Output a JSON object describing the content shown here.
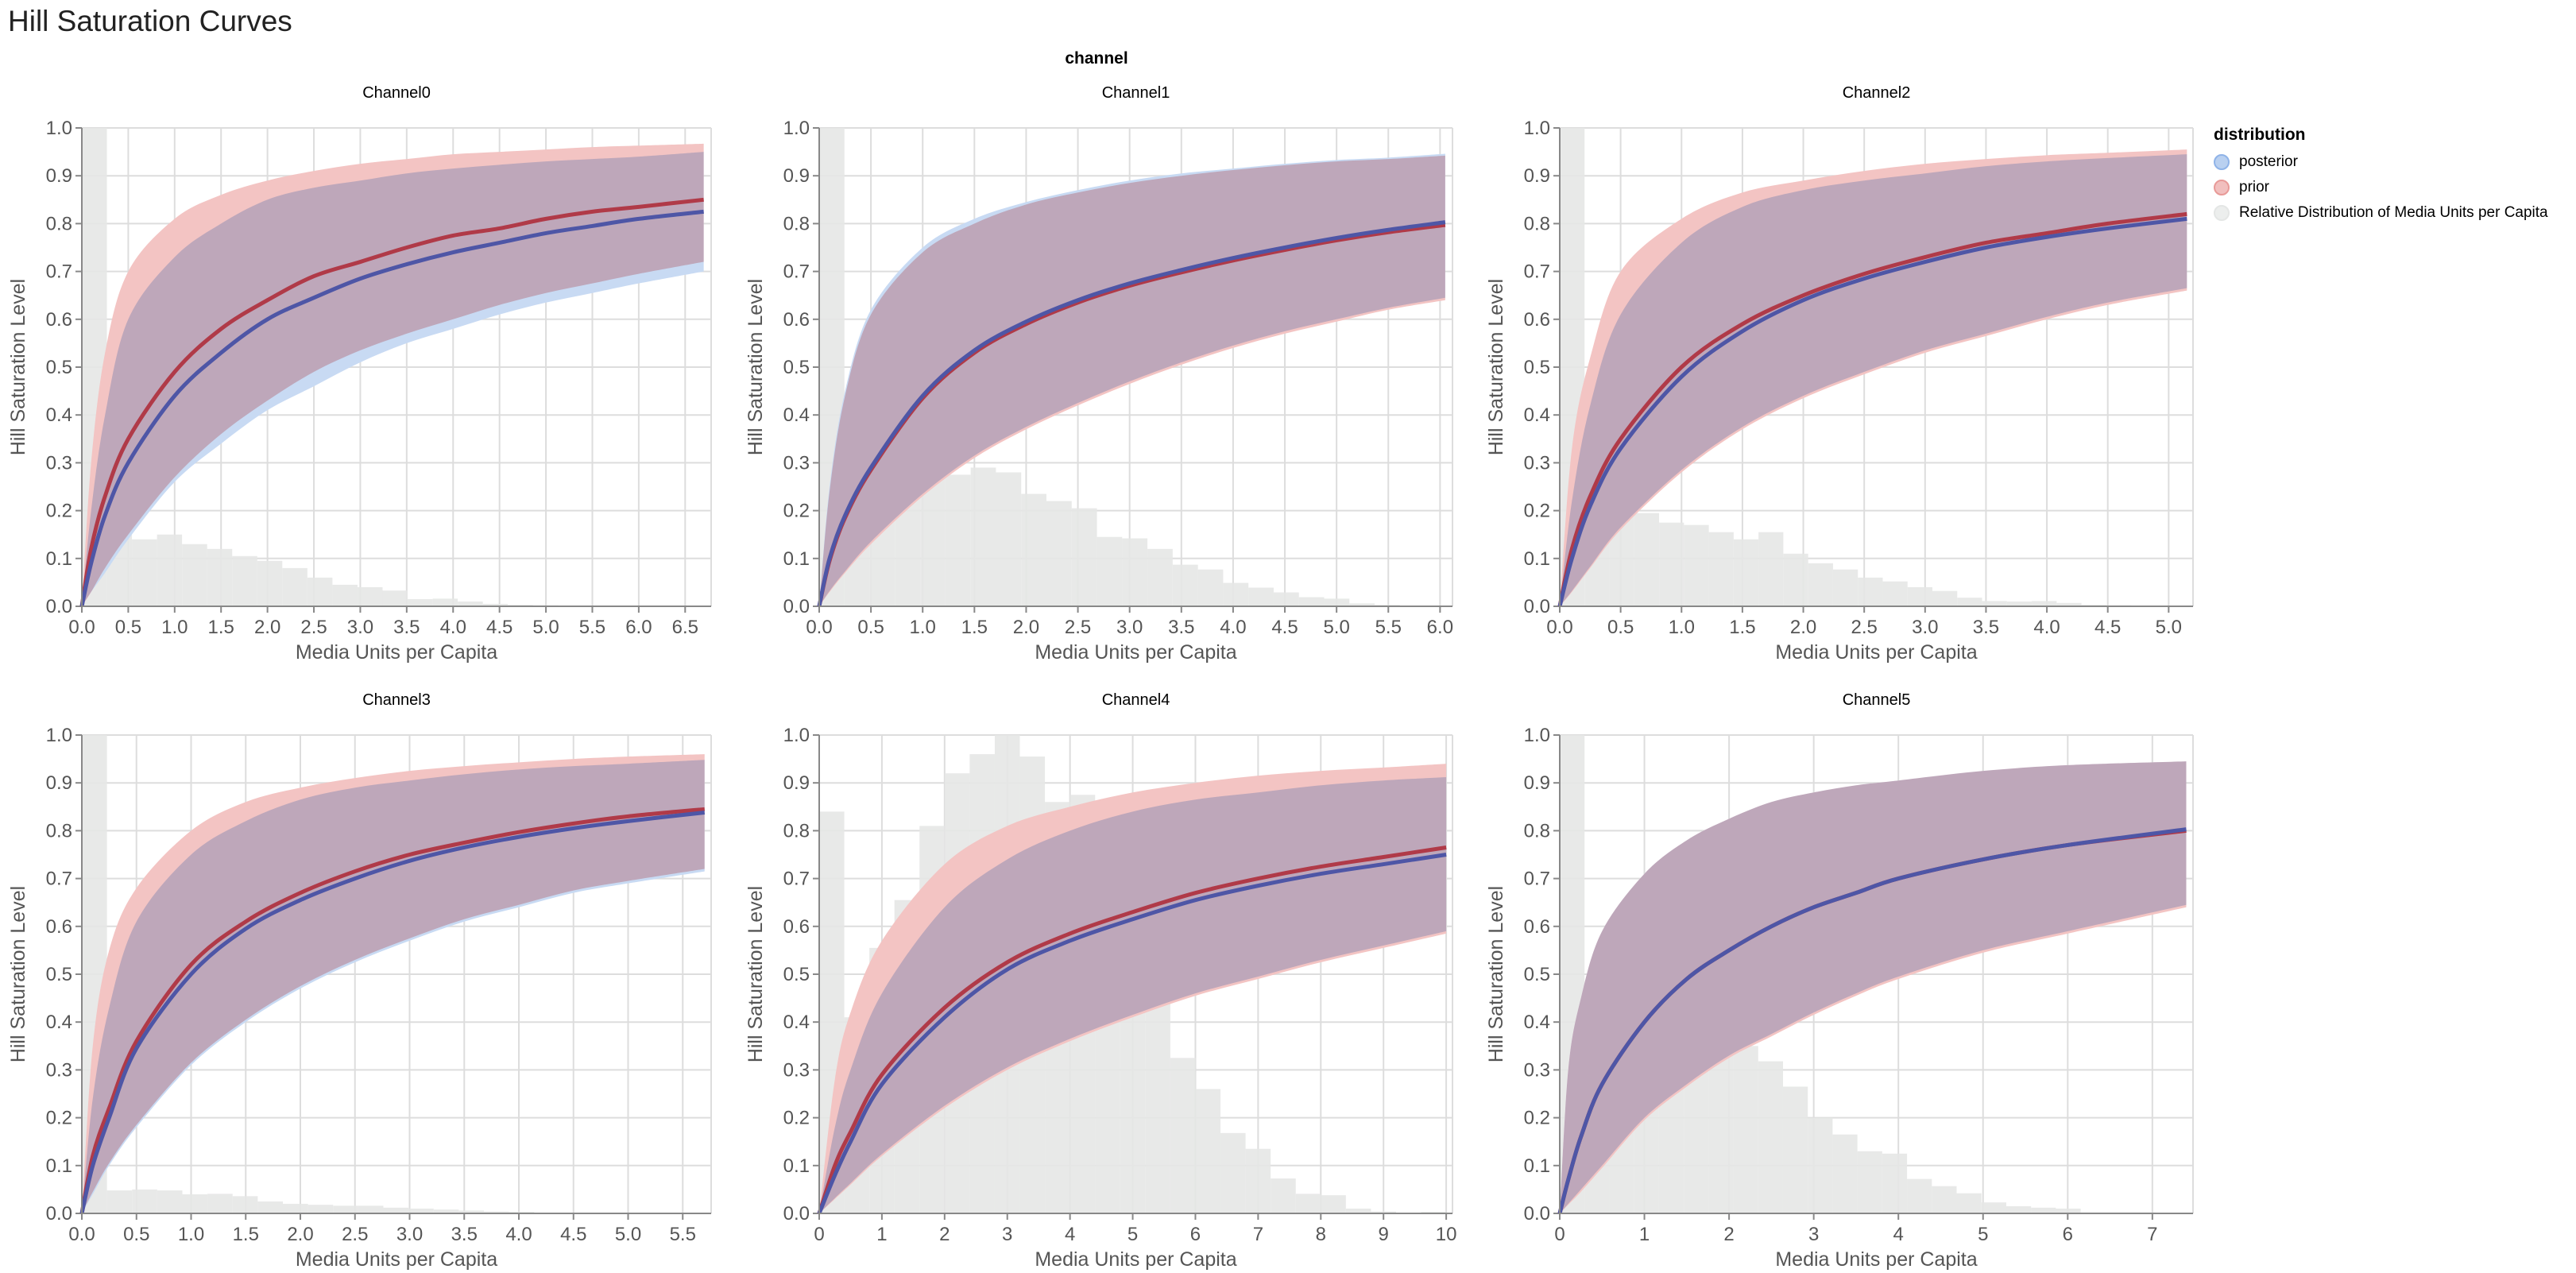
{
  "title": "Hill Saturation Curves",
  "facet_header": "channel",
  "colors": {
    "prior_band": "#f3c4c3",
    "posterior_band": "#c8daf3",
    "prior_line": "#b03a48",
    "posterior_line": "#4e56a6",
    "histogram": "#e6e7e6",
    "grid": "#dddddd",
    "axis": "#888888"
  },
  "legend": {
    "title": "distribution",
    "items": [
      {
        "label": "posterior",
        "fill": "#b9d0f0",
        "stroke": "#8fb3e8"
      },
      {
        "label": "prior",
        "fill": "#f1bfbe",
        "stroke": "#e89a98"
      },
      {
        "label": "Relative Distribution of Media Units per Capita",
        "fill": "#eceeed",
        "stroke": "#e4e6e5"
      }
    ]
  },
  "chart_data": [
    {
      "type": "area+line+bar",
      "title": "Channel0",
      "xlabel": "Media Units per Capita",
      "ylabel": "Hill Saturation Level",
      "xlim": [
        0,
        6.78
      ],
      "ylim": [
        0,
        1
      ],
      "x_ticks": [
        "0.0",
        "0.5",
        "1.0",
        "1.5",
        "2.0",
        "2.5",
        "3.0",
        "3.5",
        "4.0",
        "4.5",
        "5.0",
        "5.5",
        "6.0",
        "6.5"
      ],
      "y_ticks": [
        "0.0",
        "0.1",
        "0.2",
        "0.3",
        "0.4",
        "0.5",
        "0.6",
        "0.7",
        "0.8",
        "0.9",
        "1.0"
      ],
      "grid": true,
      "histogram": {
        "bin_width": 0.27,
        "values": [
          1.0,
          0.16,
          0.14,
          0.15,
          0.13,
          0.12,
          0.105,
          0.095,
          0.08,
          0.06,
          0.045,
          0.04,
          0.033,
          0.015,
          0.016,
          0.01,
          0.005,
          0.003,
          0.002
        ]
      },
      "x": [
        0,
        0.1,
        0.25,
        0.5,
        1,
        1.5,
        2,
        2.5,
        3,
        3.5,
        4,
        4.5,
        5,
        5.5,
        6,
        6.7
      ],
      "prior": {
        "median": [
          0,
          0.12,
          0.23,
          0.35,
          0.49,
          0.58,
          0.64,
          0.69,
          0.72,
          0.75,
          0.775,
          0.79,
          0.81,
          0.825,
          0.835,
          0.85
        ],
        "upper": [
          0,
          0.3,
          0.53,
          0.7,
          0.81,
          0.86,
          0.89,
          0.91,
          0.925,
          0.935,
          0.945,
          0.95,
          0.955,
          0.96,
          0.963,
          0.967
        ],
        "lower": [
          0,
          0.03,
          0.08,
          0.15,
          0.27,
          0.36,
          0.43,
          0.49,
          0.535,
          0.57,
          0.6,
          0.63,
          0.655,
          0.675,
          0.695,
          0.72
        ]
      },
      "posterior": {
        "median": [
          0,
          0.09,
          0.19,
          0.3,
          0.44,
          0.53,
          0.6,
          0.645,
          0.685,
          0.715,
          0.74,
          0.76,
          0.78,
          0.795,
          0.81,
          0.825
        ],
        "upper": [
          0,
          0.2,
          0.4,
          0.6,
          0.73,
          0.8,
          0.85,
          0.875,
          0.89,
          0.905,
          0.915,
          0.923,
          0.93,
          0.935,
          0.94,
          0.95
        ],
        "lower": [
          0,
          0.03,
          0.07,
          0.14,
          0.26,
          0.34,
          0.41,
          0.46,
          0.51,
          0.55,
          0.58,
          0.61,
          0.635,
          0.655,
          0.675,
          0.7
        ]
      }
    },
    {
      "type": "area+line+bar",
      "title": "Channel1",
      "xlabel": "Media Units per Capita",
      "ylabel": "Hill Saturation Level",
      "xlim": [
        0,
        6.12
      ],
      "ylim": [
        0,
        1
      ],
      "x_ticks": [
        "0.0",
        "0.5",
        "1.0",
        "1.5",
        "2.0",
        "2.5",
        "3.0",
        "3.5",
        "4.0",
        "4.5",
        "5.0",
        "5.5",
        "6.0"
      ],
      "y_ticks": [
        "0.0",
        "0.1",
        "0.2",
        "0.3",
        "0.4",
        "0.5",
        "0.6",
        "0.7",
        "0.8",
        "0.9",
        "1.0"
      ],
      "grid": true,
      "histogram": {
        "bin_width": 0.244,
        "values": [
          1.0,
          0.215,
          0.26,
          0.27,
          0.3,
          0.275,
          0.29,
          0.28,
          0.235,
          0.22,
          0.205,
          0.145,
          0.142,
          0.12,
          0.087,
          0.077,
          0.049,
          0.039,
          0.029,
          0.019,
          0.016,
          0.006,
          0.003,
          0.001,
          0.001
        ]
      },
      "x": [
        0,
        0.1,
        0.25,
        0.5,
        1,
        1.5,
        2,
        2.5,
        3,
        3.5,
        4,
        4.5,
        5,
        5.5,
        6.05
      ],
      "prior": {
        "median": [
          0,
          0.095,
          0.185,
          0.285,
          0.435,
          0.53,
          0.59,
          0.635,
          0.67,
          0.698,
          0.723,
          0.745,
          0.765,
          0.782,
          0.797
        ],
        "upper": [
          0,
          0.24,
          0.44,
          0.61,
          0.74,
          0.8,
          0.84,
          0.865,
          0.885,
          0.9,
          0.912,
          0.922,
          0.93,
          0.935,
          0.942
        ],
        "lower": [
          0,
          0.03,
          0.07,
          0.13,
          0.23,
          0.31,
          0.37,
          0.42,
          0.465,
          0.505,
          0.54,
          0.57,
          0.595,
          0.62,
          0.64
        ]
      },
      "posterior": {
        "median": [
          0,
          0.1,
          0.19,
          0.29,
          0.44,
          0.535,
          0.595,
          0.64,
          0.675,
          0.703,
          0.728,
          0.75,
          0.77,
          0.787,
          0.803
        ],
        "upper": [
          0,
          0.25,
          0.45,
          0.62,
          0.75,
          0.81,
          0.845,
          0.87,
          0.89,
          0.905,
          0.915,
          0.925,
          0.933,
          0.938,
          0.946
        ],
        "lower": [
          0,
          0.032,
          0.073,
          0.135,
          0.235,
          0.315,
          0.375,
          0.425,
          0.47,
          0.51,
          0.545,
          0.575,
          0.6,
          0.624,
          0.645
        ]
      }
    },
    {
      "type": "area+line+bar",
      "title": "Channel2",
      "xlabel": "Media Units per Capita",
      "ylabel": "Hill Saturation Level",
      "xlim": [
        0,
        5.2
      ],
      "ylim": [
        0,
        1
      ],
      "x_ticks": [
        "0.0",
        "0.5",
        "1.0",
        "1.5",
        "2.0",
        "2.5",
        "3.0",
        "3.5",
        "4.0",
        "4.5",
        "5.0"
      ],
      "y_ticks": [
        "0.0",
        "0.1",
        "0.2",
        "0.3",
        "0.4",
        "0.5",
        "0.6",
        "0.7",
        "0.8",
        "0.9",
        "1.0"
      ],
      "grid": true,
      "histogram": {
        "bin_width": 0.204,
        "values": [
          1.0,
          0.18,
          0.19,
          0.195,
          0.175,
          0.17,
          0.155,
          0.14,
          0.155,
          0.11,
          0.09,
          0.077,
          0.06,
          0.052,
          0.04,
          0.032,
          0.018,
          0.011,
          0.01,
          0.011,
          0.007,
          0.003,
          0.002,
          0.001
        ]
      },
      "x": [
        0,
        0.1,
        0.25,
        0.5,
        1,
        1.5,
        2,
        2.5,
        3,
        3.5,
        4,
        4.5,
        5.15
      ],
      "prior": {
        "median": [
          0,
          0.12,
          0.23,
          0.35,
          0.5,
          0.59,
          0.65,
          0.695,
          0.73,
          0.76,
          0.78,
          0.8,
          0.82
        ],
        "upper": [
          0,
          0.33,
          0.52,
          0.7,
          0.81,
          0.865,
          0.89,
          0.91,
          0.925,
          0.935,
          0.943,
          0.948,
          0.955
        ],
        "lower": [
          0,
          0.03,
          0.08,
          0.16,
          0.28,
          0.37,
          0.435,
          0.485,
          0.53,
          0.565,
          0.6,
          0.63,
          0.66
        ]
      },
      "posterior": {
        "median": [
          0,
          0.1,
          0.21,
          0.33,
          0.48,
          0.575,
          0.64,
          0.685,
          0.72,
          0.75,
          0.772,
          0.79,
          0.81
        ],
        "upper": [
          0,
          0.22,
          0.42,
          0.61,
          0.76,
          0.835,
          0.87,
          0.89,
          0.905,
          0.92,
          0.93,
          0.937,
          0.945
        ],
        "lower": [
          0,
          0.032,
          0.083,
          0.165,
          0.285,
          0.375,
          0.44,
          0.49,
          0.535,
          0.57,
          0.605,
          0.635,
          0.665
        ]
      }
    },
    {
      "type": "area+line+bar",
      "title": "Channel3",
      "xlabel": "Media Units per Capita",
      "ylabel": "Hill Saturation Level",
      "xlim": [
        0,
        5.76
      ],
      "ylim": [
        0,
        1
      ],
      "x_ticks": [
        "0.0",
        "0.5",
        "1.0",
        "1.5",
        "2.0",
        "2.5",
        "3.0",
        "3.5",
        "4.0",
        "4.5",
        "5.0",
        "5.5"
      ],
      "y_ticks": [
        "0.0",
        "0.1",
        "0.2",
        "0.3",
        "0.4",
        "0.5",
        "0.6",
        "0.7",
        "0.8",
        "0.9",
        "1.0"
      ],
      "grid": true,
      "histogram": {
        "bin_width": 0.23,
        "values": [
          1.0,
          0.048,
          0.05,
          0.048,
          0.04,
          0.041,
          0.036,
          0.025,
          0.02,
          0.018,
          0.016,
          0.016,
          0.012,
          0.01,
          0.008,
          0.006,
          0.004,
          0.003,
          0.001
        ]
      },
      "x": [
        0,
        0.1,
        0.25,
        0.5,
        1,
        1.5,
        2,
        2.5,
        3,
        3.5,
        4,
        4.5,
        5,
        5.7
      ],
      "prior": {
        "median": [
          0,
          0.12,
          0.22,
          0.36,
          0.52,
          0.61,
          0.67,
          0.715,
          0.75,
          0.775,
          0.797,
          0.815,
          0.83,
          0.845
        ],
        "upper": [
          0,
          0.35,
          0.55,
          0.68,
          0.8,
          0.86,
          0.89,
          0.91,
          0.925,
          0.935,
          0.943,
          0.95,
          0.955,
          0.96
        ],
        "lower": [
          0,
          0.045,
          0.105,
          0.185,
          0.315,
          0.405,
          0.475,
          0.53,
          0.575,
          0.615,
          0.645,
          0.675,
          0.695,
          0.72
        ]
      },
      "posterior": {
        "median": [
          0,
          0.1,
          0.2,
          0.345,
          0.5,
          0.595,
          0.655,
          0.7,
          0.737,
          0.765,
          0.787,
          0.805,
          0.82,
          0.838
        ],
        "upper": [
          0,
          0.24,
          0.43,
          0.61,
          0.75,
          0.82,
          0.865,
          0.89,
          0.905,
          0.918,
          0.928,
          0.935,
          0.94,
          0.948
        ],
        "lower": [
          0,
          0.04,
          0.1,
          0.18,
          0.31,
          0.4,
          0.47,
          0.525,
          0.57,
          0.61,
          0.64,
          0.67,
          0.69,
          0.715
        ]
      }
    },
    {
      "type": "area+line+bar",
      "title": "Channel4",
      "xlabel": "Media Units per Capita",
      "ylabel": "Hill Saturation Level",
      "xlim": [
        0,
        10.1
      ],
      "ylim": [
        0,
        1
      ],
      "x_ticks": [
        "0",
        "1",
        "2",
        "3",
        "4",
        "5",
        "6",
        "7",
        "8",
        "9",
        "10"
      ],
      "y_ticks": [
        "0.0",
        "0.1",
        "0.2",
        "0.3",
        "0.4",
        "0.5",
        "0.6",
        "0.7",
        "0.8",
        "0.9",
        "1.0"
      ],
      "grid": true,
      "histogram": {
        "bin_width": 0.4,
        "values": [
          0.84,
          0.41,
          0.555,
          0.655,
          0.81,
          0.92,
          0.96,
          1.0,
          0.955,
          0.86,
          0.875,
          0.71,
          0.54,
          0.45,
          0.325,
          0.26,
          0.168,
          0.135,
          0.073,
          0.041,
          0.038,
          0.01,
          0.004,
          0.001,
          0.003
        ]
      },
      "x": [
        0,
        0.25,
        0.5,
        1,
        2,
        3,
        4,
        5,
        6,
        7,
        8,
        9,
        10
      ],
      "prior": {
        "median": [
          0,
          0.1,
          0.17,
          0.29,
          0.43,
          0.525,
          0.585,
          0.63,
          0.67,
          0.7,
          0.725,
          0.745,
          0.765
        ],
        "upper": [
          0,
          0.28,
          0.42,
          0.57,
          0.73,
          0.81,
          0.85,
          0.88,
          0.9,
          0.915,
          0.925,
          0.932,
          0.94
        ],
        "lower": [
          0,
          0.03,
          0.06,
          0.12,
          0.22,
          0.3,
          0.36,
          0.41,
          0.455,
          0.49,
          0.525,
          0.555,
          0.585
        ]
      },
      "posterior": {
        "median": [
          0,
          0.08,
          0.15,
          0.27,
          0.41,
          0.51,
          0.57,
          0.615,
          0.655,
          0.685,
          0.71,
          0.73,
          0.75
        ],
        "upper": [
          0,
          0.18,
          0.3,
          0.46,
          0.64,
          0.74,
          0.8,
          0.84,
          0.865,
          0.88,
          0.895,
          0.905,
          0.912
        ],
        "lower": [
          0,
          0.032,
          0.063,
          0.124,
          0.225,
          0.305,
          0.365,
          0.415,
          0.46,
          0.495,
          0.53,
          0.56,
          0.59
        ]
      }
    },
    {
      "type": "area+line+bar",
      "title": "Channel5",
      "xlabel": "Media Units per Capita",
      "ylabel": "Hill Saturation Level",
      "xlim": [
        0,
        7.48
      ],
      "ylim": [
        0,
        1
      ],
      "x_ticks": [
        "0",
        "1",
        "2",
        "3",
        "4",
        "5",
        "6",
        "7"
      ],
      "y_ticks": [
        "0.0",
        "0.1",
        "0.2",
        "0.3",
        "0.4",
        "0.5",
        "0.6",
        "0.7",
        "0.8",
        "0.9",
        "1.0"
      ],
      "grid": true,
      "histogram": {
        "bin_width": 0.293,
        "values": [
          1.0,
          0.26,
          0.32,
          0.345,
          0.35,
          0.375,
          0.34,
          0.35,
          0.318,
          0.265,
          0.2,
          0.165,
          0.13,
          0.125,
          0.072,
          0.057,
          0.042,
          0.023,
          0.015,
          0.012,
          0.01,
          0.002,
          0.002,
          0.002
        ]
      },
      "x": [
        0,
        0.1,
        0.25,
        0.5,
        1,
        1.5,
        2,
        2.5,
        3,
        3.5,
        4,
        5,
        6,
        7.4
      ],
      "prior": {
        "median": [
          0,
          0.07,
          0.16,
          0.27,
          0.4,
          0.49,
          0.55,
          0.6,
          0.64,
          0.67,
          0.7,
          0.74,
          0.77,
          0.8
        ],
        "upper": [
          0,
          0.3,
          0.45,
          0.59,
          0.71,
          0.78,
          0.825,
          0.86,
          0.88,
          0.895,
          0.905,
          0.925,
          0.937,
          0.945
        ],
        "lower": [
          0,
          0.018,
          0.045,
          0.095,
          0.195,
          0.265,
          0.325,
          0.37,
          0.415,
          0.455,
          0.49,
          0.545,
          0.585,
          0.64
        ]
      },
      "posterior": {
        "median": [
          0,
          0.07,
          0.16,
          0.27,
          0.4,
          0.49,
          0.55,
          0.6,
          0.64,
          0.67,
          0.7,
          0.74,
          0.77,
          0.803
        ],
        "upper": [
          0,
          0.3,
          0.45,
          0.59,
          0.71,
          0.78,
          0.825,
          0.86,
          0.88,
          0.895,
          0.905,
          0.925,
          0.937,
          0.945
        ],
        "lower": [
          0,
          0.02,
          0.05,
          0.1,
          0.2,
          0.27,
          0.33,
          0.375,
          0.42,
          0.46,
          0.495,
          0.55,
          0.59,
          0.645
        ]
      }
    }
  ]
}
